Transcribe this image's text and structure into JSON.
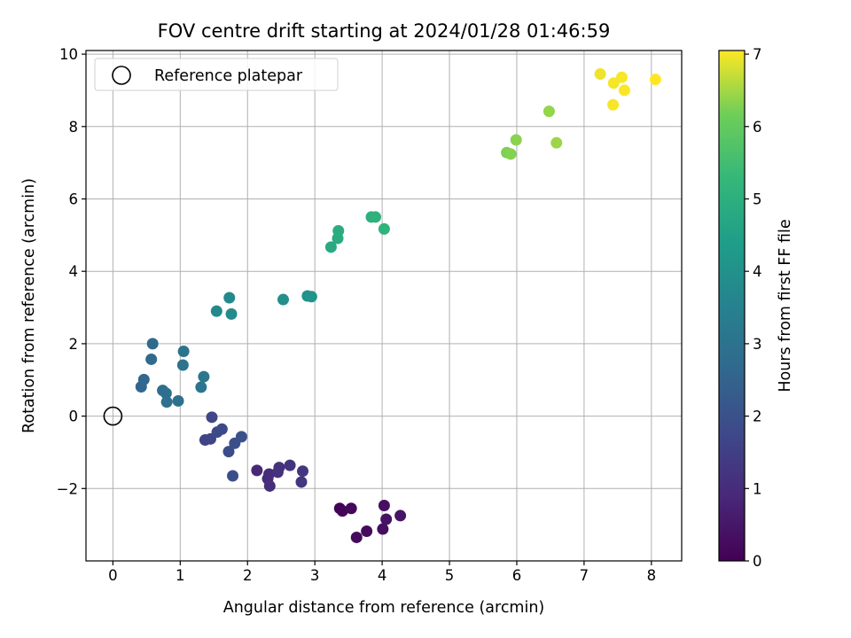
{
  "chart_data": {
    "type": "scatter",
    "title": "FOV centre drift starting at 2024/01/28 01:46:59",
    "xlabel": "Angular distance from reference (arcmin)",
    "ylabel": "Rotation from reference (arcmin)",
    "xlim": [
      -0.4,
      8.45
    ],
    "ylim": [
      -4.0,
      10.1
    ],
    "xticks": [
      0,
      1,
      2,
      3,
      4,
      5,
      6,
      7,
      8
    ],
    "yticks": [
      -2,
      0,
      2,
      4,
      6,
      8,
      10
    ],
    "grid": true,
    "colormap": "viridis",
    "legend": {
      "placement": "upper-left",
      "entries": [
        "Reference platepar"
      ]
    },
    "reference_point": {
      "name": "Reference platepar",
      "x": 0,
      "y": 0
    },
    "colorbar": {
      "label": "Hours from first FF file",
      "range": [
        0,
        7.05
      ],
      "ticks": [
        0,
        1,
        2,
        3,
        4,
        5,
        6,
        7
      ]
    },
    "points": [
      {
        "x": 3.37,
        "y": -2.55,
        "hours": 0.05
      },
      {
        "x": 3.41,
        "y": -2.62,
        "hours": 0.1
      },
      {
        "x": 3.54,
        "y": -2.55,
        "hours": 0.15
      },
      {
        "x": 3.62,
        "y": -3.35,
        "hours": 0.2
      },
      {
        "x": 3.77,
        "y": -3.18,
        "hours": 0.25
      },
      {
        "x": 4.01,
        "y": -3.12,
        "hours": 0.3
      },
      {
        "x": 4.03,
        "y": -2.47,
        "hours": 0.35
      },
      {
        "x": 4.06,
        "y": -2.85,
        "hours": 0.4
      },
      {
        "x": 4.27,
        "y": -2.75,
        "hours": 0.45
      },
      {
        "x": 2.14,
        "y": -1.5,
        "hours": 0.9
      },
      {
        "x": 2.3,
        "y": -1.73,
        "hours": 0.95
      },
      {
        "x": 2.32,
        "y": -1.6,
        "hours": 1.0
      },
      {
        "x": 2.33,
        "y": -1.93,
        "hours": 1.05
      },
      {
        "x": 2.45,
        "y": -1.55,
        "hours": 1.1
      },
      {
        "x": 2.47,
        "y": -1.42,
        "hours": 1.15
      },
      {
        "x": 2.63,
        "y": -1.36,
        "hours": 1.2
      },
      {
        "x": 2.8,
        "y": -1.82,
        "hours": 1.25
      },
      {
        "x": 2.82,
        "y": -1.52,
        "hours": 1.3
      },
      {
        "x": 1.37,
        "y": -0.66,
        "hours": 1.6
      },
      {
        "x": 1.45,
        "y": -0.63,
        "hours": 1.65
      },
      {
        "x": 1.47,
        "y": -0.03,
        "hours": 1.7
      },
      {
        "x": 1.55,
        "y": -0.44,
        "hours": 1.75
      },
      {
        "x": 1.62,
        "y": -0.36,
        "hours": 1.8
      },
      {
        "x": 1.72,
        "y": -0.98,
        "hours": 1.85
      },
      {
        "x": 1.78,
        "y": -1.65,
        "hours": 1.9
      },
      {
        "x": 1.81,
        "y": -0.75,
        "hours": 1.95
      },
      {
        "x": 1.91,
        "y": -0.57,
        "hours": 2.0
      },
      {
        "x": 0.42,
        "y": 0.81,
        "hours": 2.6
      },
      {
        "x": 0.46,
        "y": 1.01,
        "hours": 2.65
      },
      {
        "x": 0.57,
        "y": 1.57,
        "hours": 2.7
      },
      {
        "x": 0.59,
        "y": 2.0,
        "hours": 2.75
      },
      {
        "x": 0.74,
        "y": 0.71,
        "hours": 2.8
      },
      {
        "x": 0.79,
        "y": 0.63,
        "hours": 2.85
      },
      {
        "x": 0.8,
        "y": 0.39,
        "hours": 2.9
      },
      {
        "x": 0.97,
        "y": 0.42,
        "hours": 2.95
      },
      {
        "x": 1.04,
        "y": 1.41,
        "hours": 3.0
      },
      {
        "x": 1.05,
        "y": 1.79,
        "hours": 3.05
      },
      {
        "x": 1.31,
        "y": 0.8,
        "hours": 3.1
      },
      {
        "x": 1.35,
        "y": 1.09,
        "hours": 3.15
      },
      {
        "x": 1.54,
        "y": 2.9,
        "hours": 3.7
      },
      {
        "x": 1.73,
        "y": 3.27,
        "hours": 3.75
      },
      {
        "x": 1.76,
        "y": 2.82,
        "hours": 3.8
      },
      {
        "x": 2.53,
        "y": 3.22,
        "hours": 3.95
      },
      {
        "x": 2.89,
        "y": 3.32,
        "hours": 4.05
      },
      {
        "x": 2.95,
        "y": 3.3,
        "hours": 4.1
      },
      {
        "x": 3.24,
        "y": 4.67,
        "hours": 4.8
      },
      {
        "x": 3.34,
        "y": 4.91,
        "hours": 4.85
      },
      {
        "x": 3.35,
        "y": 5.12,
        "hours": 4.9
      },
      {
        "x": 3.84,
        "y": 5.5,
        "hours": 5.0
      },
      {
        "x": 3.9,
        "y": 5.5,
        "hours": 5.05
      },
      {
        "x": 4.03,
        "y": 5.17,
        "hours": 5.1
      },
      {
        "x": 5.85,
        "y": 7.28,
        "hours": 6.25
      },
      {
        "x": 5.91,
        "y": 7.24,
        "hours": 6.3
      },
      {
        "x": 5.99,
        "y": 7.63,
        "hours": 6.35
      },
      {
        "x": 6.48,
        "y": 8.42,
        "hours": 6.4
      },
      {
        "x": 6.59,
        "y": 7.55,
        "hours": 6.45
      },
      {
        "x": 7.24,
        "y": 9.45,
        "hours": 6.95
      },
      {
        "x": 7.43,
        "y": 8.6,
        "hours": 7.0
      },
      {
        "x": 7.44,
        "y": 9.2,
        "hours": 7.0
      },
      {
        "x": 7.56,
        "y": 9.36,
        "hours": 7.02
      },
      {
        "x": 7.6,
        "y": 9.0,
        "hours": 7.03
      },
      {
        "x": 8.06,
        "y": 9.3,
        "hours": 7.05
      }
    ]
  }
}
